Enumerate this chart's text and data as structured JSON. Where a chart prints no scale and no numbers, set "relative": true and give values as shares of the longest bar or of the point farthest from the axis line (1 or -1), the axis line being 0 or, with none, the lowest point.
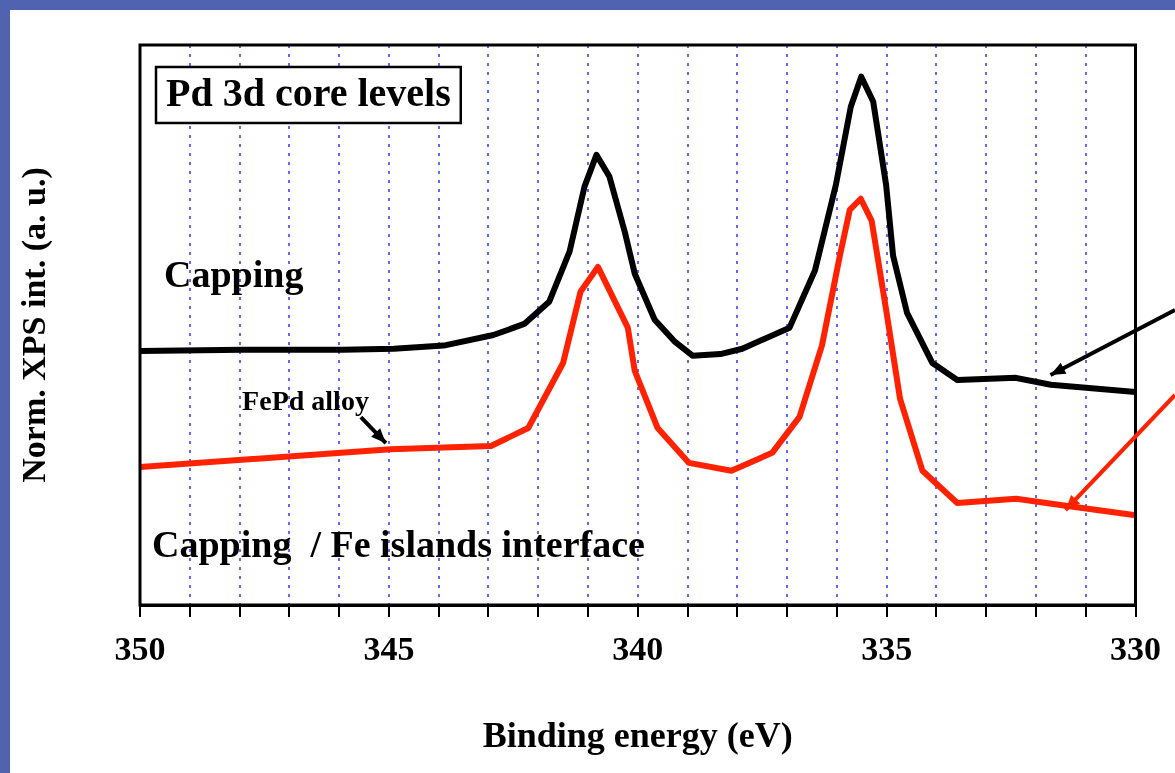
{
  "chart_data": {
    "type": "line",
    "title": "Pd 3d core levels",
    "xlabel": "Binding energy (eV)",
    "ylabel": "Norm. XPS int. (a. u.)",
    "relative": true,
    "grid": "x",
    "xlim": [
      350,
      330
    ],
    "xticks": [
      350,
      {
        "value": 349,
        "label": null
      },
      {
        "value": 348,
        "label": null
      },
      {
        "value": 347,
        "label": null
      },
      {
        "value": 346,
        "label": null
      },
      345,
      {
        "value": 344,
        "label": null
      },
      {
        "value": 343,
        "label": null
      },
      {
        "value": 342,
        "label": null
      },
      {
        "value": 341,
        "label": null
      },
      340,
      {
        "value": 339,
        "label": null
      },
      {
        "value": 338,
        "label": null
      },
      {
        "value": 337,
        "label": null
      },
      {
        "value": 336,
        "label": null
      },
      335,
      {
        "value": 334,
        "label": null
      },
      {
        "value": 333,
        "label": null
      },
      {
        "value": 332,
        "label": null
      },
      {
        "value": 331,
        "label": null
      },
      330
    ],
    "annotations": [
      {
        "text": "FePd alloy",
        "x": 345,
        "y": 0.295
      }
    ],
    "series": [
      {
        "name": "Capping",
        "color": "#000000",
        "x": [
          350,
          347.94,
          345.92,
          344.9,
          343.9,
          342.9,
          342.28,
          341.78,
          341.37,
          341.07,
          340.83,
          340.57,
          340.26,
          340.06,
          339.66,
          339.25,
          338.9,
          338.34,
          337.9,
          336.95,
          336.44,
          336.02,
          335.72,
          335.51,
          335.27,
          335.01,
          334.87,
          334.59,
          334.44,
          334.08,
          333.58,
          332.4,
          331.7,
          330
        ],
        "values": [
          0.481,
          0.483,
          0.483,
          0.485,
          0.491,
          0.511,
          0.532,
          0.574,
          0.669,
          0.792,
          0.852,
          0.811,
          0.706,
          0.627,
          0.54,
          0.498,
          0.472,
          0.475,
          0.485,
          0.525,
          0.633,
          0.795,
          0.943,
          1.0,
          0.953,
          0.795,
          0.661,
          0.553,
          0.525,
          0.458,
          0.426,
          0.43,
          0.417,
          0.403
        ]
      },
      {
        "name": "Capping  / Fe islands interface",
        "color": "#ff2200",
        "x": [
          350,
          344.97,
          342.95,
          342.2,
          341.5,
          341.15,
          340.8,
          340.2,
          340.06,
          339.6,
          338.97,
          338.12,
          337.3,
          336.75,
          336.3,
          335.94,
          335.74,
          335.52,
          335.3,
          335.01,
          334.73,
          334.28,
          333.58,
          332.4,
          331.4,
          330
        ],
        "values": [
          0.261,
          0.295,
          0.301,
          0.335,
          0.458,
          0.593,
          0.64,
          0.525,
          0.443,
          0.335,
          0.269,
          0.254,
          0.288,
          0.356,
          0.491,
          0.661,
          0.748,
          0.769,
          0.727,
          0.559,
          0.39,
          0.254,
          0.193,
          0.201,
          0.188,
          0.17
        ]
      }
    ]
  }
}
